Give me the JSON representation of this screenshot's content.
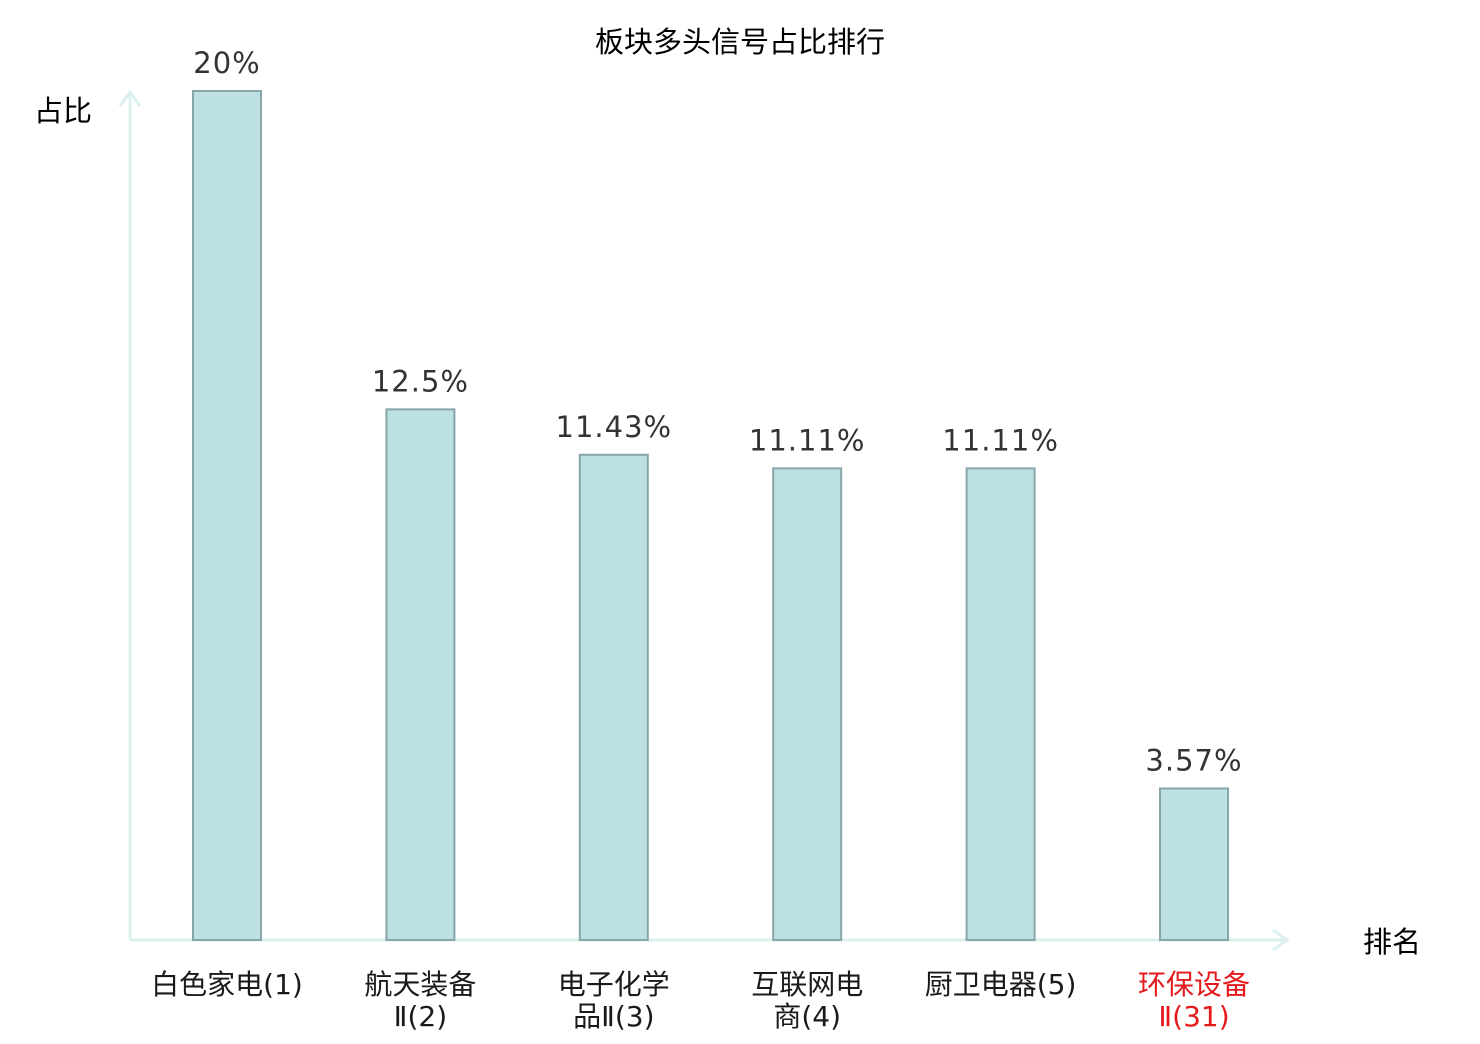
{
  "chart_data": {
    "type": "bar",
    "title": "板块多头信号占比排行",
    "ylabel": "占比",
    "xlabel": "排名",
    "ylim": [
      0,
      20
    ],
    "grid": false,
    "categories": [
      [
        "白色家电(1)"
      ],
      [
        "航天装备",
        "Ⅱ(2)"
      ],
      [
        "电子化学",
        "品Ⅱ(3)"
      ],
      [
        "互联网电",
        "商(4)"
      ],
      [
        "厨卫电器(5)"
      ],
      [
        "环保设备",
        "Ⅱ(31)"
      ]
    ],
    "values": [
      20,
      12.5,
      11.43,
      11.11,
      11.11,
      3.57
    ],
    "value_labels": [
      "20%",
      "12.5%",
      "11.43%",
      "11.11%",
      "11.11%",
      "3.57%"
    ],
    "highlight_index": 5,
    "colors": {
      "bar_fill": "#bde0e3",
      "bar_stroke": "#86a6a9",
      "axis": "#dcf0ef",
      "text": "#1a1a1a",
      "value_text": "#333333",
      "highlight_text": "#e41a1c"
    }
  }
}
